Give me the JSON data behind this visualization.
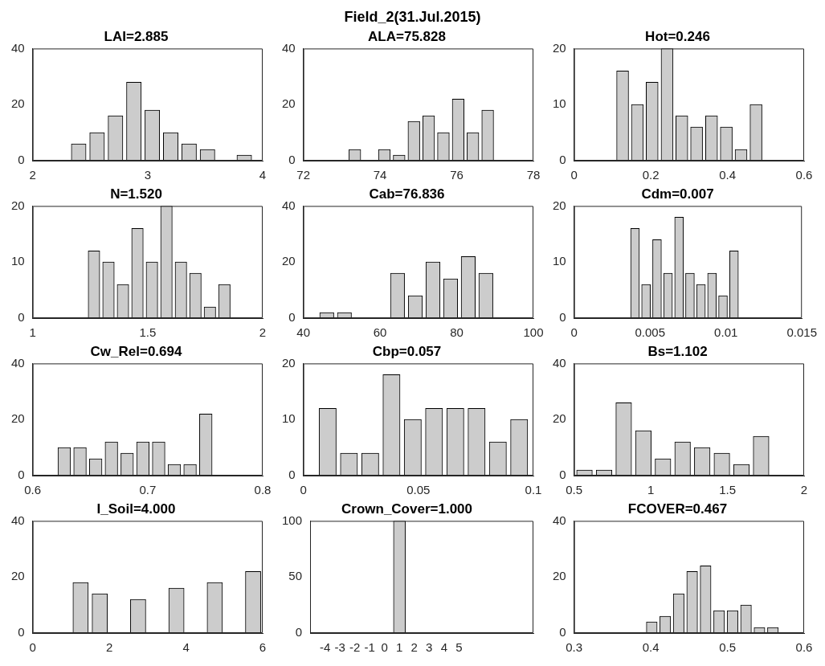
{
  "chart_data": [
    {
      "type": "other",
      "title": "Field_2(31.Jul.2015)"
    },
    {
      "type": "histogram",
      "title": "LAI=2.885",
      "bins": [
        2.32,
        2.48,
        2.64,
        2.8,
        2.96,
        3.12,
        3.28,
        3.44,
        3.6,
        3.76,
        3.92
      ],
      "values": [
        6,
        10,
        16,
        28,
        18,
        10,
        6,
        4,
        0,
        2
      ],
      "color": "#cccccc",
      "xlim": [
        2,
        4
      ],
      "xticks": [
        2,
        3,
        4
      ],
      "ylim": [
        0,
        40
      ],
      "yticks": [
        0,
        20,
        40
      ]
    },
    {
      "type": "histogram",
      "title": "ALA=75.828",
      "bins": [
        73.15,
        73.535,
        73.92,
        74.305,
        74.69,
        75.075,
        75.46,
        75.845,
        76.23,
        76.615,
        77.0
      ],
      "values": [
        4,
        0,
        4,
        2,
        14,
        16,
        10,
        22,
        10,
        18
      ],
      "color": "#cccccc",
      "xlim": [
        72,
        78
      ],
      "xticks": [
        72,
        74,
        76,
        78
      ],
      "ylim": [
        0,
        40
      ],
      "yticks": [
        0,
        20,
        40
      ]
    },
    {
      "type": "histogram",
      "title": "Hot=0.246",
      "bins": [
        0.107,
        0.146,
        0.184,
        0.223,
        0.262,
        0.3,
        0.339,
        0.378,
        0.416,
        0.455,
        0.494
      ],
      "values": [
        16,
        10,
        14,
        20,
        8,
        6,
        8,
        6,
        2,
        10
      ],
      "color": "#cccccc",
      "xlim": [
        0,
        0.6
      ],
      "xticks": [
        0,
        0.2,
        0.4,
        0.6
      ],
      "ylim": [
        0,
        20
      ],
      "yticks": [
        0,
        10,
        20
      ]
    },
    {
      "type": "histogram",
      "title": "N=1.520",
      "bins": [
        1.235,
        1.298,
        1.361,
        1.424,
        1.487,
        1.55,
        1.613,
        1.676,
        1.739,
        1.802,
        1.865
      ],
      "values": [
        12,
        10,
        6,
        16,
        10,
        20,
        10,
        8,
        2,
        6
      ],
      "color": "#cccccc",
      "xlim": [
        1,
        2
      ],
      "xticks": [
        1,
        1.5,
        2
      ],
      "ylim": [
        0,
        20
      ],
      "yticks": [
        0,
        10,
        20
      ]
    },
    {
      "type": "histogram",
      "title": "Cab=76.836",
      "bins": [
        43.8,
        48.4,
        53.0,
        57.6,
        62.2,
        66.9,
        71.5,
        76.1,
        80.7,
        85.3,
        89.9
      ],
      "values": [
        2,
        2,
        0,
        0,
        16,
        8,
        20,
        14,
        22,
        16
      ],
      "color": "#cccccc",
      "xlim": [
        40,
        100
      ],
      "xticks": [
        40,
        60,
        80,
        100
      ],
      "ylim": [
        0,
        40
      ],
      "yticks": [
        0,
        20,
        40
      ]
    },
    {
      "type": "histogram",
      "title": "Cdm=0.007",
      "bins": [
        0.00365,
        0.00437,
        0.0051,
        0.00582,
        0.00655,
        0.00727,
        0.00799,
        0.00872,
        0.00944,
        0.01017,
        0.01089
      ],
      "values": [
        16,
        6,
        14,
        8,
        18,
        8,
        6,
        8,
        4,
        12
      ],
      "color": "#cccccc",
      "xlim": [
        0,
        0.015
      ],
      "xticks": [
        0,
        0.005,
        0.01,
        0.015
      ],
      "ylim": [
        0,
        20
      ],
      "yticks": [
        0,
        10,
        20
      ]
    },
    {
      "type": "histogram",
      "title": "Cw_Rel=0.694",
      "bins": [
        0.6206,
        0.6343,
        0.648,
        0.6616,
        0.6753,
        0.689,
        0.7027,
        0.7164,
        0.73,
        0.7437,
        0.7574
      ],
      "values": [
        10,
        10,
        6,
        12,
        8,
        12,
        12,
        4,
        4,
        22
      ],
      "color": "#cccccc",
      "xlim": [
        0.6,
        0.8
      ],
      "xticks": [
        0.6,
        0.7,
        0.8
      ],
      "ylim": [
        0,
        40
      ],
      "yticks": [
        0,
        20,
        40
      ]
    },
    {
      "type": "histogram",
      "title": "Cbp=0.057",
      "bins": [
        0.0059,
        0.0152,
        0.0244,
        0.0337,
        0.0429,
        0.0522,
        0.0614,
        0.0707,
        0.0799,
        0.0892,
        0.0984
      ],
      "values": [
        12,
        4,
        4,
        18,
        10,
        12,
        12,
        12,
        6,
        10
      ],
      "color": "#cccccc",
      "xlim": [
        0,
        0.1
      ],
      "xticks": [
        0,
        0.05,
        0.1
      ],
      "ylim": [
        0,
        20
      ],
      "yticks": [
        0,
        10,
        20
      ]
    },
    {
      "type": "histogram",
      "title": "Bs=1.102",
      "bins": [
        0.5035,
        0.6315,
        0.7595,
        0.8875,
        1.0155,
        1.1435,
        1.2715,
        1.3995,
        1.5275,
        1.6555,
        1.7835
      ],
      "values": [
        2,
        2,
        26,
        16,
        6,
        12,
        10,
        8,
        4,
        14
      ],
      "color": "#cccccc",
      "xlim": [
        0.5,
        2
      ],
      "xticks": [
        0.5,
        1,
        1.5,
        2
      ],
      "ylim": [
        0,
        40
      ],
      "yticks": [
        0,
        20,
        40
      ]
    },
    {
      "type": "histogram",
      "title": "I_Soil=4.000",
      "bins": [
        1.0,
        1.5,
        2.0,
        2.5,
        3.0,
        3.5,
        4.0,
        4.5,
        5.0,
        5.5,
        6.0
      ],
      "values": [
        18,
        14,
        0,
        12,
        0,
        16,
        0,
        18,
        0,
        22
      ],
      "color": "#cccccc",
      "xlim": [
        0,
        6
      ],
      "xticks": [
        0,
        2,
        4,
        6
      ],
      "ylim": [
        0,
        40
      ],
      "yticks": [
        0,
        20,
        40
      ]
    },
    {
      "type": "histogram",
      "title": "Crown_Cover=1.000",
      "bins": [
        0.5,
        1.5
      ],
      "values": [
        100
      ],
      "color": "#cccccc",
      "xlim": [
        -5,
        10
      ],
      "xticks": [
        -4,
        -3,
        -2,
        -1,
        0,
        1,
        2,
        3,
        4,
        5
      ],
      "ylim": [
        0,
        100
      ],
      "yticks": [
        0,
        50,
        100
      ]
    },
    {
      "type": "histogram",
      "title": "FCOVER=0.467",
      "bins": [
        0.3925,
        0.4101,
        0.4276,
        0.4452,
        0.4627,
        0.4803,
        0.4979,
        0.5154,
        0.533,
        0.5505,
        0.5681
      ],
      "values": [
        4,
        6,
        14,
        22,
        24,
        8,
        8,
        10,
        2,
        2
      ],
      "color": "#cccccc",
      "xlim": [
        0.3,
        0.6
      ],
      "xticks": [
        0.3,
        0.4,
        0.5,
        0.6
      ],
      "ylim": [
        0,
        40
      ],
      "yticks": [
        0,
        20,
        40
      ]
    }
  ]
}
